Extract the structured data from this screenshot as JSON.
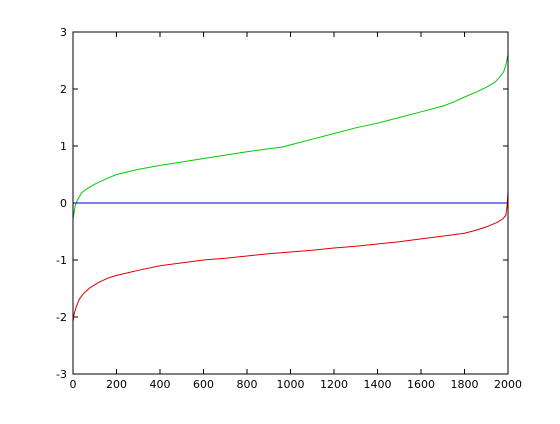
{
  "chart_data": {
    "type": "line",
    "title": "",
    "xlabel": "",
    "ylabel": "",
    "xlim": [
      0,
      2000
    ],
    "ylim": [
      -3,
      3
    ],
    "x_ticks": [
      0,
      200,
      400,
      600,
      800,
      1000,
      1200,
      1400,
      1600,
      1800,
      2000
    ],
    "y_ticks": [
      -3,
      -2,
      -1,
      0,
      1,
      2,
      3
    ],
    "grid": false,
    "series": [
      {
        "color": "#00cc00",
        "x": [
          0,
          10,
          20,
          40,
          60,
          100,
          150,
          200,
          300,
          400,
          500,
          600,
          700,
          800,
          900,
          960,
          1000,
          1100,
          1200,
          1300,
          1400,
          1500,
          1600,
          1700,
          1750,
          1800,
          1850,
          1900,
          1940,
          1960,
          1980,
          1990,
          2000
        ],
        "y": [
          -0.28,
          -0.05,
          0.05,
          0.18,
          0.24,
          0.33,
          0.42,
          0.5,
          0.59,
          0.66,
          0.72,
          0.78,
          0.84,
          0.9,
          0.95,
          0.98,
          1.02,
          1.12,
          1.22,
          1.32,
          1.4,
          1.5,
          1.6,
          1.7,
          1.77,
          1.86,
          1.94,
          2.03,
          2.12,
          2.2,
          2.3,
          2.42,
          2.6
        ]
      },
      {
        "color": "#0000cc",
        "x": [
          0,
          2000
        ],
        "y": [
          0,
          0
        ]
      },
      {
        "color": "#dd0000",
        "x": [
          0,
          5,
          15,
          30,
          50,
          80,
          120,
          160,
          200,
          300,
          400,
          500,
          600,
          700,
          800,
          900,
          1000,
          1100,
          1200,
          1300,
          1400,
          1500,
          1600,
          1700,
          1800,
          1850,
          1900,
          1950,
          1975,
          1990,
          1996,
          2000
        ],
        "y": [
          -2.08,
          -1.95,
          -1.82,
          -1.68,
          -1.58,
          -1.48,
          -1.39,
          -1.32,
          -1.27,
          -1.18,
          -1.1,
          -1.05,
          -1.0,
          -0.97,
          -0.93,
          -0.89,
          -0.86,
          -0.83,
          -0.79,
          -0.76,
          -0.72,
          -0.68,
          -0.63,
          -0.58,
          -0.53,
          -0.48,
          -0.42,
          -0.34,
          -0.28,
          -0.22,
          -0.05,
          0.2
        ]
      }
    ]
  }
}
